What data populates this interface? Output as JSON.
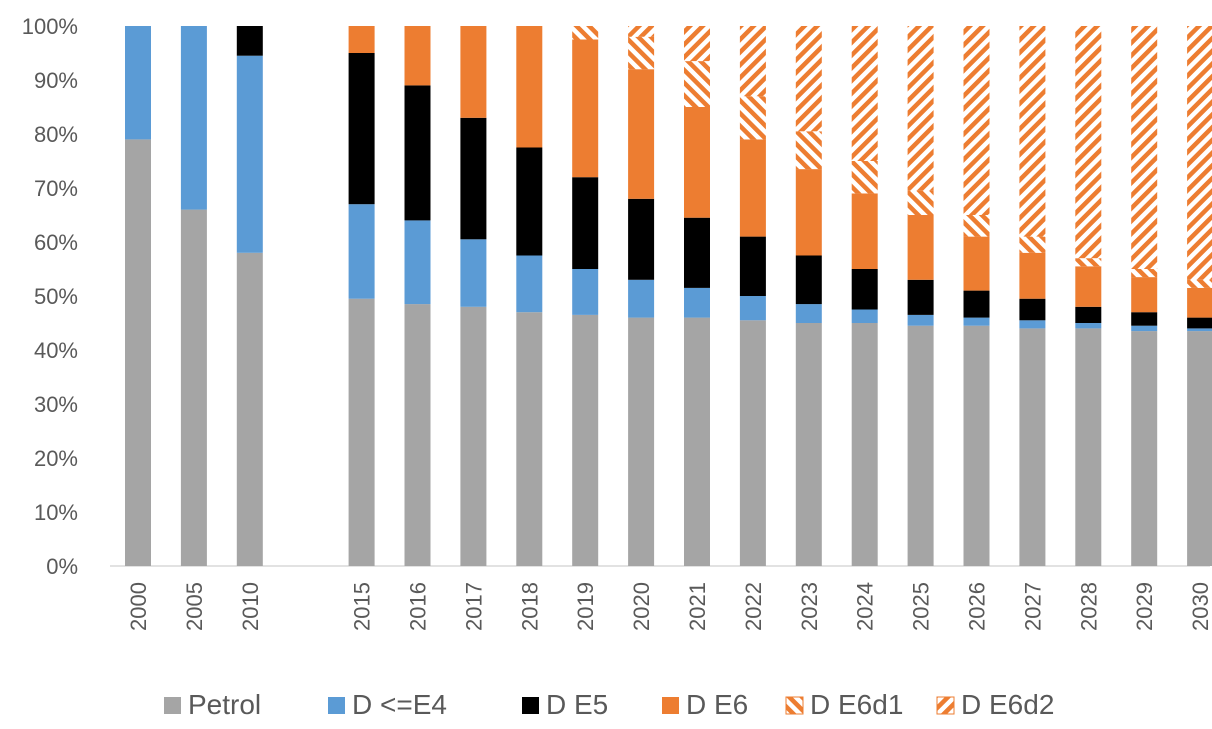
{
  "chart_data": {
    "type": "bar",
    "stacked": true,
    "categories": [
      "2000",
      "2005",
      "2010",
      "2015",
      "2016",
      "2017",
      "2018",
      "2019",
      "2020",
      "2021",
      "2022",
      "2023",
      "2024",
      "2025",
      "2026",
      "2027",
      "2028",
      "2029",
      "2030"
    ],
    "category_gap_after": "2010",
    "ylim": [
      0,
      100
    ],
    "yticks": [
      "0%",
      "10%",
      "20%",
      "30%",
      "40%",
      "50%",
      "60%",
      "70%",
      "80%",
      "90%",
      "100%"
    ],
    "grid": false,
    "legend_position": "bottom",
    "series": [
      {
        "name": "Petrol",
        "color": "#a5a5a5",
        "pattern": "solid",
        "values": [
          79,
          66,
          58,
          49.5,
          48.5,
          48,
          47,
          46.5,
          46,
          46,
          45.5,
          45,
          45,
          44.5,
          44.5,
          44,
          44,
          43.5,
          43.5
        ]
      },
      {
        "name": "D <=E4",
        "color": "#5b9bd5",
        "pattern": "solid",
        "values": [
          21,
          34,
          36.5,
          17.5,
          15.5,
          12.5,
          10.5,
          8.5,
          7,
          5.5,
          4.5,
          3.5,
          2.5,
          2,
          1.5,
          1.5,
          1,
          1,
          0.5
        ]
      },
      {
        "name": "D E5",
        "color": "#000000",
        "pattern": "solid",
        "values": [
          0,
          0,
          5.5,
          28,
          25,
          22.5,
          20,
          17,
          15,
          13,
          11,
          9,
          7.5,
          6.5,
          5,
          4,
          3,
          2.5,
          2
        ]
      },
      {
        "name": "D E6",
        "color": "#ed7d31",
        "pattern": "solid",
        "values": [
          0,
          0,
          0,
          5,
          11,
          17,
          22.5,
          25.5,
          24,
          20.5,
          18,
          16,
          14,
          12,
          10,
          8.5,
          7.5,
          6.5,
          5.5
        ]
      },
      {
        "name": "D E6d1",
        "color": "#ed7d31",
        "pattern": "hatch-fwd",
        "values": [
          0,
          0,
          0,
          0,
          0,
          0,
          0,
          2.5,
          6,
          8.5,
          8,
          7,
          6,
          4.5,
          4,
          3,
          1.5,
          1.5,
          1.5
        ]
      },
      {
        "name": "D E6d2",
        "color": "#ed7d31",
        "pattern": "hatch-back",
        "values": [
          0,
          0,
          0,
          0,
          0,
          0,
          0,
          0,
          2,
          6.5,
          13,
          19.5,
          25,
          30.5,
          35,
          39,
          43,
          45,
          47
        ]
      }
    ]
  }
}
